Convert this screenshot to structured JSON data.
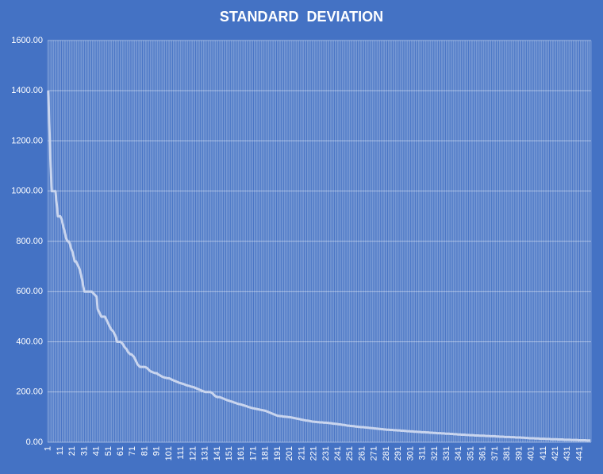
{
  "chart_data": {
    "type": "line",
    "title": "STANDARD  DEVIATION",
    "categories": [
      "1",
      null,
      null,
      null,
      null,
      null,
      null,
      null,
      null,
      null,
      "11",
      null,
      null,
      null,
      null,
      null,
      null,
      null,
      null,
      null,
      "21",
      null,
      null,
      null,
      null,
      null,
      null,
      null,
      null,
      null,
      "31",
      null,
      null,
      null,
      null,
      null,
      null,
      null,
      null,
      null,
      "41",
      null,
      null,
      null,
      null,
      null,
      null,
      null,
      null,
      null,
      "51",
      null,
      null,
      null,
      null,
      null,
      null,
      null,
      null,
      null,
      "61",
      null,
      null,
      null,
      null,
      null,
      null,
      null,
      null,
      null,
      "71",
      null,
      null,
      null,
      null,
      null,
      null,
      null,
      null,
      null,
      "81",
      null,
      null,
      null,
      null,
      null,
      null,
      null,
      null,
      null,
      "91",
      null,
      null,
      null,
      null,
      null,
      null,
      null,
      null,
      null,
      "101",
      null,
      null,
      null,
      null,
      null,
      null,
      null,
      null,
      null,
      "111",
      null,
      null,
      null,
      null,
      null,
      null,
      null,
      null,
      null,
      "121",
      null,
      null,
      null,
      null,
      null,
      null,
      null,
      null,
      null,
      "131",
      null,
      null,
      null,
      null,
      null,
      null,
      null,
      null,
      null,
      "141",
      null,
      null,
      null,
      null,
      null,
      null,
      null,
      null,
      null,
      "151",
      null,
      null,
      null,
      null,
      null,
      null,
      null,
      null,
      null,
      "161",
      null,
      null,
      null,
      null,
      null,
      null,
      null,
      null,
      null,
      "171",
      null,
      null,
      null,
      null,
      null,
      null,
      null,
      null,
      null,
      "181",
      null,
      null,
      null,
      null,
      null,
      null,
      null,
      null,
      null,
      "191",
      null,
      null,
      null,
      null,
      null,
      null,
      null,
      null,
      null,
      "201",
      null,
      null,
      null,
      null,
      null,
      null,
      null,
      null,
      null,
      "211",
      null,
      null,
      null,
      null,
      null,
      null,
      null,
      null,
      null,
      "221",
      null,
      null,
      null,
      null,
      null,
      null,
      null,
      null,
      null,
      "231",
      null,
      null,
      null,
      null,
      null,
      null,
      null,
      null,
      null,
      "241",
      null,
      null,
      null,
      null,
      null,
      null,
      null,
      null,
      null,
      "251",
      null,
      null,
      null,
      null,
      null,
      null,
      null,
      null,
      null,
      "261",
      null,
      null,
      null,
      null,
      null,
      null,
      null,
      null,
      null,
      "271",
      null,
      null,
      null,
      null,
      null,
      null,
      null,
      null,
      null,
      "281",
      null,
      null,
      null,
      null,
      null,
      null,
      null,
      null,
      null,
      "291",
      null,
      null,
      null,
      null,
      null,
      null,
      null,
      null,
      null,
      "301",
      null,
      null,
      null,
      null,
      null,
      null,
      null,
      null,
      null,
      "311",
      null,
      null,
      null,
      null,
      null,
      null,
      null,
      null,
      null,
      "321",
      null,
      null,
      null,
      null,
      null,
      null,
      null,
      null,
      null,
      "331",
      null,
      null,
      null,
      null,
      null,
      null,
      null,
      null,
      null,
      "341",
      null,
      null,
      null,
      null,
      null,
      null,
      null,
      null,
      null,
      "351",
      null,
      null,
      null,
      null,
      null,
      null,
      null,
      null,
      null,
      "361",
      null,
      null,
      null,
      null,
      null,
      null,
      null,
      null,
      null,
      "371",
      null,
      null,
      null,
      null,
      null,
      null,
      null,
      null,
      null,
      "381",
      null,
      null,
      null,
      null,
      null,
      null,
      null,
      null,
      null,
      "391",
      null,
      null,
      null,
      null,
      null,
      null,
      null,
      null,
      null,
      "401",
      null,
      null,
      null,
      null,
      null,
      null,
      null,
      null,
      null,
      "411",
      null,
      null,
      null,
      null,
      null,
      null,
      null,
      null,
      null,
      "421",
      null,
      null,
      null,
      null,
      null,
      null,
      null,
      null,
      null,
      "431",
      null,
      null,
      null,
      null,
      null,
      null,
      null,
      null,
      null,
      "441",
      null,
      null,
      null,
      null,
      null,
      null,
      null,
      null,
      null
    ],
    "values": [
      1400,
      1250,
      1100,
      1000,
      1000,
      1000,
      1000,
      950,
      900,
      900,
      900,
      890,
      870,
      850,
      830,
      810,
      800,
      800,
      790,
      770,
      760,
      740,
      720,
      720,
      710,
      700,
      690,
      670,
      650,
      620,
      600,
      600,
      600,
      600,
      600,
      600,
      600,
      595,
      590,
      585,
      580,
      530,
      520,
      510,
      500,
      500,
      500,
      500,
      490,
      480,
      470,
      460,
      450,
      445,
      440,
      430,
      420,
      400,
      400,
      400,
      400,
      395,
      390,
      380,
      375,
      370,
      360,
      355,
      350,
      350,
      345,
      340,
      330,
      320,
      310,
      305,
      300,
      300,
      300,
      300,
      300,
      298,
      295,
      290,
      285,
      282,
      280,
      278,
      276,
      275,
      275,
      270,
      268,
      265,
      262,
      260,
      258,
      257,
      256,
      255,
      255,
      253,
      250,
      248,
      246,
      244,
      242,
      240,
      238,
      236,
      235,
      233,
      232,
      230,
      228,
      226,
      225,
      224,
      222,
      221,
      220,
      218,
      216,
      214,
      212,
      210,
      208,
      206,
      204,
      202,
      200,
      200,
      200,
      200,
      200,
      198,
      195,
      190,
      185,
      182,
      180,
      180,
      180,
      178,
      176,
      174,
      172,
      170,
      168,
      166,
      165,
      163,
      162,
      160,
      158,
      157,
      155,
      153,
      152,
      151,
      150,
      148,
      147,
      145,
      144,
      142,
      140,
      139,
      137,
      136,
      135,
      134,
      133,
      132,
      131,
      130,
      129,
      128,
      127,
      126,
      125,
      123,
      121,
      119,
      117,
      115,
      113,
      111,
      109,
      107,
      105,
      105,
      104,
      104,
      103,
      102,
      102,
      101,
      101,
      100,
      100,
      99,
      98,
      97,
      96,
      95,
      94,
      93,
      92,
      91,
      90,
      89,
      88,
      87,
      86,
      86,
      85,
      84,
      83,
      82,
      82,
      81,
      81,
      80,
      80,
      79,
      79,
      79,
      78,
      78,
      78,
      77,
      77,
      76,
      76,
      75,
      74,
      74,
      73,
      73,
      72,
      71,
      71,
      70,
      69,
      69,
      68,
      67,
      66,
      66,
      65,
      65,
      64,
      64,
      63,
      62,
      62,
      61,
      61,
      60,
      60,
      60,
      59,
      59,
      58,
      58,
      57,
      57,
      56,
      56,
      55,
      55,
      54,
      54,
      53,
      53,
      52,
      52,
      51,
      51,
      50,
      50,
      50,
      49,
      49,
      49,
      48,
      48,
      48,
      47,
      47,
      47,
      46,
      46,
      46,
      45,
      45,
      44,
      44,
      44,
      43,
      43,
      43,
      42,
      42,
      42,
      41,
      41,
      41,
      40,
      40,
      40,
      40,
      39,
      39,
      39,
      38,
      38,
      38,
      37,
      37,
      37,
      36,
      36,
      36,
      36,
      35,
      35,
      35,
      34,
      34,
      34,
      34,
      33,
      33,
      33,
      32,
      32,
      32,
      31,
      31,
      31,
      30,
      30,
      30,
      30,
      29,
      29,
      29,
      28,
      28,
      28,
      28,
      27,
      27,
      27,
      27,
      26,
      26,
      26,
      26,
      26,
      25,
      25,
      25,
      25,
      24,
      24,
      24,
      24,
      24,
      23,
      23,
      23,
      22,
      22,
      22,
      22,
      21,
      21,
      21,
      21,
      21,
      20,
      20,
      20,
      20,
      19,
      19,
      19,
      19,
      19,
      18,
      18,
      18,
      17,
      17,
      17,
      16,
      16,
      16,
      16,
      16,
      15,
      15,
      15,
      15,
      14,
      14,
      14,
      14,
      14,
      13,
      13,
      13,
      13,
      12,
      12,
      12,
      12,
      12,
      12,
      11,
      11,
      11,
      11,
      11,
      10,
      10,
      10,
      10,
      10,
      10,
      9,
      9,
      9,
      9,
      9,
      9,
      8,
      8,
      8,
      8,
      8,
      8,
      8,
      7,
      7,
      7,
      7
    ],
    "color": "#c9d5ee",
    "ylim": [
      0,
      1600
    ],
    "yticks": [
      {
        "value": 0,
        "label": "0.00"
      },
      {
        "value": 200,
        "label": "200.00"
      },
      {
        "value": 400,
        "label": "400.00"
      },
      {
        "value": 600,
        "label": "600.00"
      },
      {
        "value": 800,
        "label": "800.00"
      },
      {
        "value": 1000,
        "label": "1000.00"
      },
      {
        "value": 1200,
        "label": "1200.00"
      },
      {
        "value": 1400,
        "label": "1400.00"
      },
      {
        "value": 1600,
        "label": "1600.00"
      }
    ],
    "grid": true
  }
}
